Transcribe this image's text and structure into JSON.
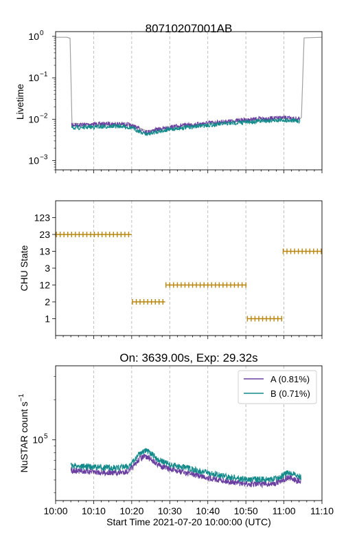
{
  "chart_data": [
    {
      "type": "line",
      "title": "80710207001AB",
      "ylabel": "Livetime",
      "yscale": "log",
      "ylim": [
        0.0006,
        1.3
      ],
      "xlim": [
        0,
        70
      ],
      "y_ticks": [
        {
          "base": "10",
          "exp": "0",
          "value": 1
        },
        {
          "base": "10",
          "exp": "−1",
          "value": 0.1
        },
        {
          "base": "10",
          "exp": "−2",
          "value": 0.01
        },
        {
          "base": "10",
          "exp": "−3",
          "value": 0.001
        }
      ],
      "series": [
        {
          "color": "#a0a0a0",
          "x": [
            0,
            3,
            3.8,
            4.3,
            10,
            20,
            22,
            24,
            30,
            40,
            50,
            60,
            64,
            64.6,
            65.3,
            70
          ],
          "y": [
            0.95,
            0.95,
            0.9,
            0.008,
            0.0075,
            0.0073,
            0.0062,
            0.0052,
            0.0065,
            0.0078,
            0.0092,
            0.0105,
            0.0098,
            0.011,
            0.92,
            0.95
          ]
        },
        {
          "color": "#6a3fa0",
          "x": [
            4.2,
            10,
            17,
            20,
            22,
            24,
            27,
            32,
            40,
            50,
            55,
            60,
            64.2
          ],
          "y": [
            0.0072,
            0.0076,
            0.0078,
            0.0071,
            0.0058,
            0.0049,
            0.0057,
            0.0068,
            0.0081,
            0.0096,
            0.0104,
            0.0108,
            0.0101
          ]
        },
        {
          "color": "#138a8a",
          "x": [
            4.2,
            10,
            17,
            20,
            22,
            24,
            27,
            32,
            40,
            50,
            55,
            60,
            64.2
          ],
          "y": [
            0.0062,
            0.0065,
            0.0068,
            0.0062,
            0.0051,
            0.0043,
            0.0051,
            0.006,
            0.0072,
            0.0085,
            0.0092,
            0.0096,
            0.009
          ]
        }
      ]
    },
    {
      "type": "scatter",
      "ylabel": "CHU State",
      "xlim": [
        0,
        70
      ],
      "categories": [
        "1",
        "2",
        "12",
        "3",
        "13",
        "23",
        "123"
      ],
      "marker_color": "#b8860b",
      "segments": [
        {
          "state": "23",
          "x_start": 0.2,
          "x_end": 20
        },
        {
          "state": "2",
          "x_start": 20.2,
          "x_end": 28.8
        },
        {
          "state": "12",
          "x_start": 29,
          "x_end": 50.2
        },
        {
          "state": "1",
          "x_start": 50.4,
          "x_end": 59.6
        },
        {
          "state": "13",
          "x_start": 59.8,
          "x_end": 70
        }
      ]
    },
    {
      "type": "line",
      "title": "On: 3639.00s, Exp: 29.32s",
      "ylabel": "NuSTAR count s",
      "ylabel_sup": "−1",
      "xlabel": "Start Time 2021-07-20 10:00:00 (UTC)",
      "yscale": "log",
      "ylim": [
        35000,
        360000
      ],
      "xlim": [
        0,
        70
      ],
      "x_ticks": [
        "10:00",
        "10:10",
        "10:20",
        "10:30",
        "10:40",
        "10:50",
        "11:00",
        "11:10"
      ],
      "y_ticks": [
        {
          "base": "10",
          "exp": "5",
          "value": 100000
        }
      ],
      "legend": {
        "location": "upper right",
        "entries": [
          "A (0.81%)",
          "B (0.71%)"
        ]
      },
      "series": [
        {
          "name": "A (0.81%)",
          "color": "#6a3fa0",
          "x": [
            4,
            8,
            12,
            16,
            19,
            20.5,
            22,
            23.5,
            25,
            27,
            30,
            35,
            40,
            45,
            50,
            54,
            57,
            59,
            61,
            63,
            64.5
          ],
          "y": [
            59000,
            58000,
            57000,
            56500,
            58000,
            63000,
            72000,
            75000,
            72000,
            65000,
            60000,
            56000,
            52000,
            49000,
            46500,
            46500,
            46500,
            49000,
            52000,
            50000,
            48500
          ]
        },
        {
          "name": "B (0.71%)",
          "color": "#138a8a",
          "x": [
            4,
            8,
            12,
            16,
            19,
            20.5,
            22,
            23.5,
            25,
            27,
            30,
            35,
            40,
            45,
            50,
            54,
            57,
            59,
            61,
            63,
            64.5
          ],
          "y": [
            64000,
            63000,
            62000,
            61500,
            63000,
            69000,
            79000,
            83000,
            79000,
            71000,
            65000,
            61000,
            56500,
            53000,
            50500,
            50500,
            50500,
            53000,
            56500,
            54500,
            52500
          ]
        }
      ]
    }
  ]
}
